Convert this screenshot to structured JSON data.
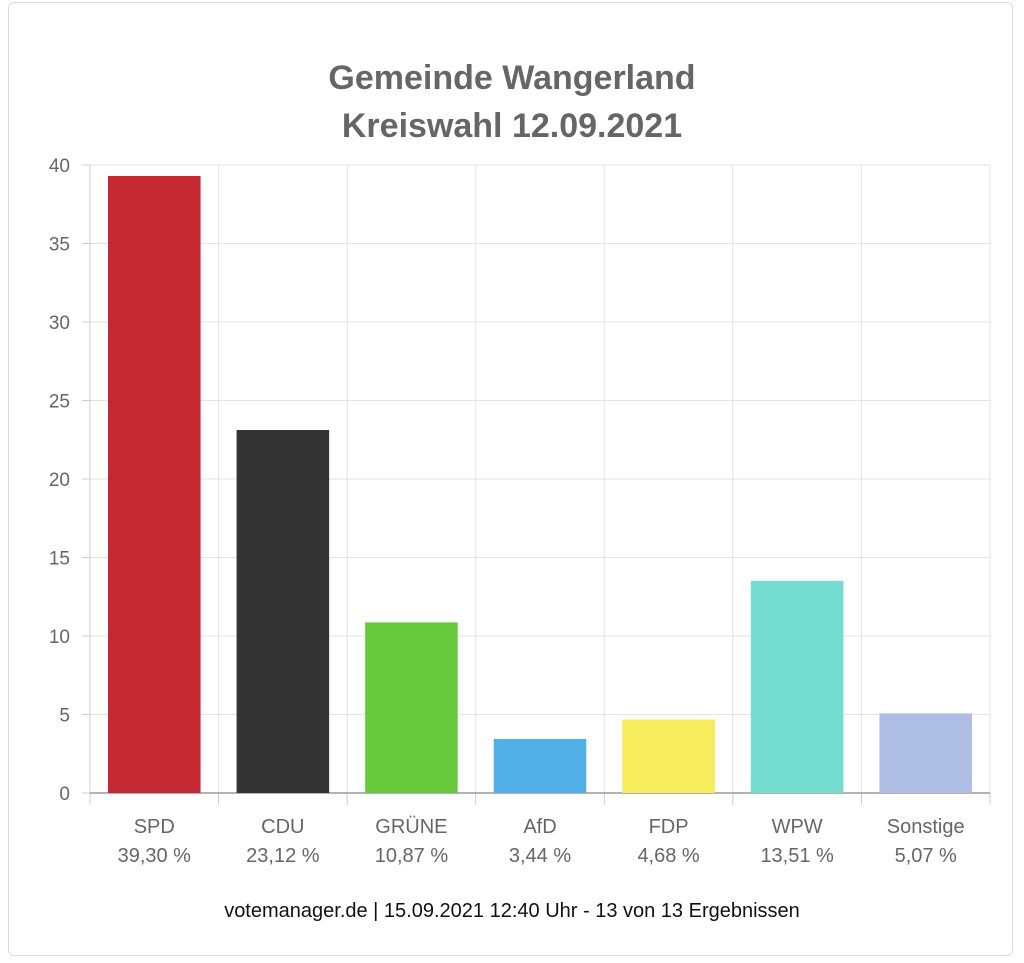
{
  "chart_data": {
    "type": "bar",
    "title_line1": "Gemeinde Wangerland",
    "title_line2": "Kreiswahl 12.09.2021",
    "categories": [
      "SPD",
      "CDU",
      "GRÜNE",
      "AfD",
      "FDP",
      "WPW",
      "Sonstige"
    ],
    "value_labels": [
      "39,30 %",
      "23,12 %",
      "10,87 %",
      "3,44 %",
      "4,68 %",
      "13,51 %",
      "5,07 %"
    ],
    "values": [
      39.3,
      23.12,
      10.87,
      3.44,
      4.68,
      13.51,
      5.07
    ],
    "colors": [
      "#c62832",
      "#333333",
      "#68c93c",
      "#52b0e8",
      "#f7ed5c",
      "#74ddd0",
      "#adbde3"
    ],
    "ylim": [
      0,
      40
    ],
    "yticks": [
      0,
      5,
      10,
      15,
      20,
      25,
      30,
      35,
      40
    ],
    "grid": true,
    "legend": "none"
  },
  "footer": "votemanager.de | 15.09.2021 12:40 Uhr - 13 von 13 Ergebnissen"
}
